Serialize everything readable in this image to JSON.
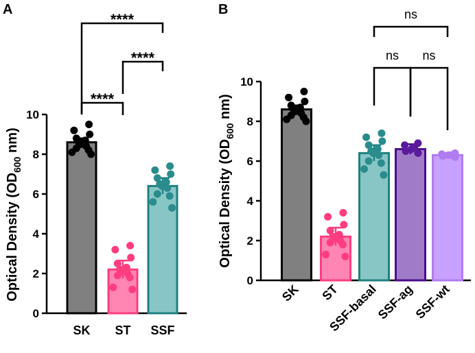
{
  "chart_data": [
    {
      "panel": "A",
      "type": "bar",
      "ylabel": "Optical Density (OD600 nm)",
      "ylabel_main": "Optical Density (OD",
      "ylabel_sub": "600",
      "ylabel_tail": " nm)",
      "ylim": [
        0,
        10
      ],
      "yticks": [
        "0",
        "2",
        "4",
        "6",
        "8",
        "10"
      ],
      "categories": [
        "SK",
        "ST",
        "SSF"
      ],
      "values": [
        8.6,
        2.2,
        6.4
      ],
      "errors": [
        0.2,
        0.45,
        0.4
      ],
      "colors": {
        "fill": [
          "#808080",
          "#ff85b3",
          "#88c6c6"
        ],
        "stroke": [
          "#000000",
          "#ff3d7f",
          "#1f8080"
        ],
        "dots": [
          "#000000",
          "#ff3d7f",
          "#2a8c8c"
        ]
      },
      "points": [
        [
          9.5,
          9.2,
          9.0,
          8.8,
          8.7,
          8.6,
          8.5,
          8.4,
          8.3,
          8.2,
          8.1,
          8.0
        ],
        [
          3.4,
          3.2,
          2.8,
          2.5,
          2.3,
          2.2,
          2.1,
          2.0,
          1.9,
          1.8,
          1.3,
          1.2
        ],
        [
          7.4,
          7.2,
          7.0,
          6.8,
          6.6,
          6.5,
          6.4,
          6.3,
          6.0,
          5.9,
          5.6,
          5.3
        ]
      ],
      "comparisons": [
        {
          "from": 0,
          "to": 2,
          "label": "****"
        },
        {
          "from": 1,
          "to": 2,
          "label": "****"
        },
        {
          "from": 0,
          "to": 1,
          "label": "****"
        }
      ]
    },
    {
      "panel": "B",
      "type": "bar",
      "ylabel": "Optical Density (OD600 nm)",
      "ylabel_main": "Optical Density (OD",
      "ylabel_sub": "600",
      "ylabel_tail": " nm)",
      "ylim": [
        0,
        10
      ],
      "yticks": [
        "0",
        "2",
        "4",
        "6",
        "8",
        "10"
      ],
      "categories": [
        "SK",
        "ST",
        "SSF-basal",
        "SSF-ag",
        "SSF-wt"
      ],
      "values": [
        8.6,
        2.2,
        6.4,
        6.6,
        6.3
      ],
      "errors": [
        0.2,
        0.45,
        0.4,
        0.25,
        0.1
      ],
      "colors": {
        "fill": [
          "#808080",
          "#ff85b3",
          "#88c6c6",
          "#a07cc8",
          "#c8a0ff"
        ],
        "stroke": [
          "#000000",
          "#ff3d7f",
          "#1f8080",
          "#4b0a8c",
          "#b07cf0"
        ],
        "dots": [
          "#000000",
          "#ff3d7f",
          "#2a8c8c",
          "#5a1a9c",
          "#b07cf0"
        ]
      },
      "points": [
        [
          9.5,
          9.2,
          9.0,
          8.8,
          8.7,
          8.6,
          8.5,
          8.4,
          8.3,
          8.2,
          8.1,
          8.0
        ],
        [
          3.4,
          3.2,
          2.8,
          2.5,
          2.3,
          2.2,
          2.1,
          2.0,
          1.9,
          1.8,
          1.3,
          1.2
        ],
        [
          7.4,
          7.2,
          7.0,
          6.8,
          6.6,
          6.5,
          6.4,
          6.3,
          6.0,
          5.9,
          5.6,
          5.3
        ],
        [
          6.9,
          6.8,
          6.7,
          6.6,
          6.5,
          6.4
        ],
        [
          6.4,
          6.35,
          6.3,
          6.3,
          6.25,
          6.2
        ]
      ],
      "comparisons": [
        {
          "from": 2,
          "to": 4,
          "label": "ns"
        },
        {
          "from": 2,
          "to": 3,
          "label": "ns"
        },
        {
          "from": 3,
          "to": 4,
          "label": "ns"
        }
      ]
    }
  ]
}
